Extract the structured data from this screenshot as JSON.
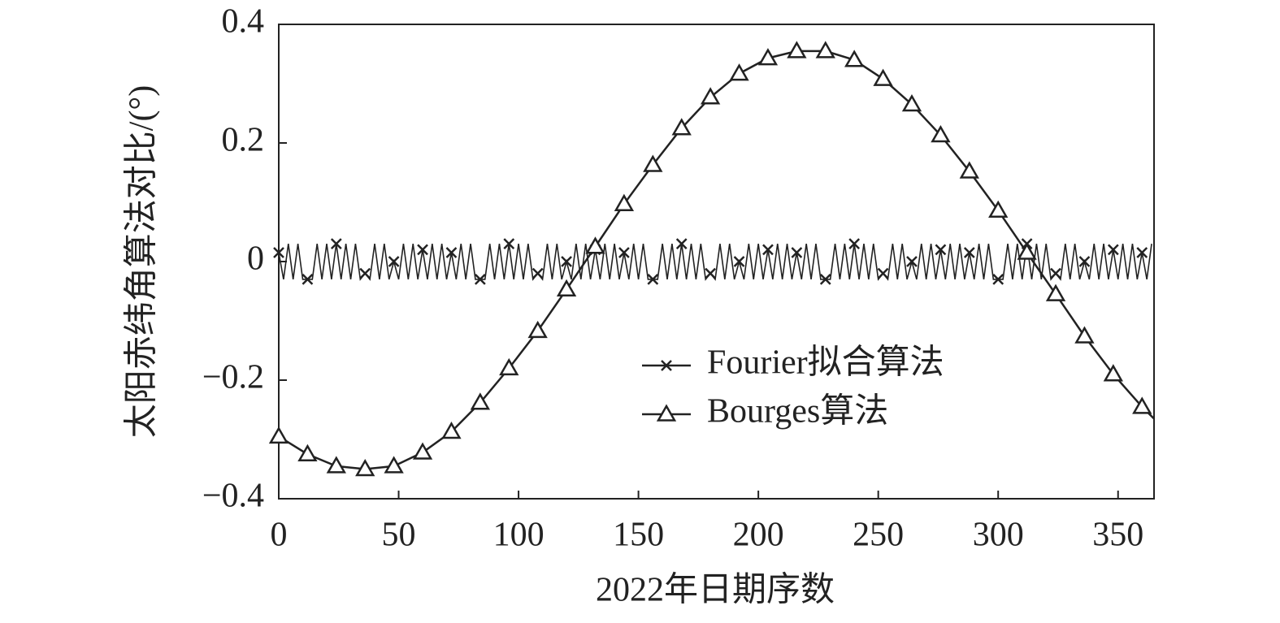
{
  "chart_data": {
    "type": "line",
    "xlabel": "2022年日期序数",
    "ylabel": "太阳赤纬角算法对比/(°)",
    "xlim": [
      0,
      365
    ],
    "ylim": [
      -0.4,
      0.4
    ],
    "xticks": [
      0,
      50,
      100,
      150,
      200,
      250,
      300,
      350
    ],
    "yticks": [
      {
        "value": -0.4,
        "label": "−0.4"
      },
      {
        "value": -0.2,
        "label": "−0.2"
      },
      0,
      0.2,
      0.4
    ],
    "legend": "lower right",
    "series": [
      {
        "name": "Fourier拟合算法",
        "color": "#222222",
        "marker": "x",
        "x": [
          0,
          2,
          4,
          6,
          8,
          10,
          12,
          14,
          16,
          18,
          20,
          22,
          24,
          26,
          28,
          30,
          32,
          34,
          36,
          38,
          40,
          42,
          44,
          46,
          48,
          50,
          52,
          54,
          56,
          58,
          60,
          62,
          64,
          66,
          68,
          70,
          72,
          74,
          76,
          78,
          80,
          82,
          84,
          86,
          88,
          90,
          92,
          94,
          96,
          98,
          100,
          102,
          104,
          106,
          108,
          110,
          112,
          114,
          116,
          118,
          120,
          122,
          124,
          126,
          128,
          130,
          132,
          134,
          136,
          138,
          140,
          142,
          144,
          146,
          148,
          150,
          152,
          154,
          156,
          158,
          160,
          162,
          164,
          166,
          168,
          170,
          172,
          174,
          176,
          178,
          180,
          182,
          184,
          186,
          188,
          190,
          192,
          194,
          196,
          198,
          200,
          202,
          204,
          206,
          208,
          210,
          212,
          214,
          216,
          218,
          220,
          222,
          224,
          226,
          228,
          230,
          232,
          234,
          236,
          238,
          240,
          242,
          244,
          246,
          248,
          250,
          252,
          254,
          256,
          258,
          260,
          262,
          264,
          266,
          268,
          270,
          272,
          274,
          276,
          278,
          280,
          282,
          284,
          286,
          288,
          290,
          292,
          294,
          296,
          298,
          300,
          302,
          304,
          306,
          308,
          310,
          312,
          314,
          316,
          318,
          320,
          322,
          324,
          326,
          328,
          330,
          332,
          334,
          336,
          338,
          340,
          342,
          344,
          346,
          348,
          350,
          352,
          354,
          356,
          358,
          360,
          362,
          364
        ],
        "values": [
          0.015,
          -0.03,
          0.03,
          -0.03,
          0.03,
          -0.03,
          -0.03,
          -0.03,
          0.03,
          -0.03,
          0.03,
          -0.03,
          0.03,
          -0.03,
          0.03,
          -0.03,
          0.03,
          -0.03,
          -0.02,
          -0.03,
          0.03,
          -0.03,
          0.03,
          -0.03,
          0,
          -0.03,
          0.03,
          -0.03,
          0.03,
          -0.03,
          0.02,
          -0.03,
          0.03,
          -0.03,
          0.03,
          -0.03,
          0.015,
          -0.03,
          0.03,
          -0.03,
          0.03,
          -0.03,
          -0.03,
          -0.03,
          0.03,
          -0.03,
          0.03,
          -0.03,
          0.03,
          -0.03,
          0.03,
          -0.03,
          0.03,
          -0.03,
          -0.02,
          -0.03,
          0.03,
          -0.03,
          0.03,
          -0.03,
          0,
          -0.03,
          0.03,
          -0.03,
          0.03,
          -0.03,
          0.02,
          -0.03,
          0.03,
          -0.03,
          0.03,
          -0.03,
          0.015,
          -0.03,
          0.03,
          -0.03,
          0.03,
          -0.03,
          -0.03,
          -0.03,
          0.03,
          -0.03,
          0.03,
          -0.03,
          0.03,
          -0.03,
          0.03,
          -0.03,
          0.03,
          -0.03,
          -0.02,
          -0.03,
          0.03,
          -0.03,
          0.03,
          -0.03,
          0,
          -0.03,
          0.03,
          -0.03,
          0.03,
          -0.03,
          0.02,
          -0.03,
          0.03,
          -0.03,
          0.03,
          -0.03,
          0.015,
          -0.03,
          0.03,
          -0.03,
          0.03,
          -0.03,
          -0.03,
          -0.03,
          0.03,
          -0.03,
          0.03,
          -0.03,
          0.03,
          -0.03,
          0.03,
          -0.03,
          0.03,
          -0.03,
          -0.02,
          -0.03,
          0.03,
          -0.03,
          0.03,
          -0.03,
          0,
          -0.03,
          0.03,
          -0.03,
          0.03,
          -0.03,
          0.02,
          -0.03,
          0.03,
          -0.03,
          0.03,
          -0.03,
          0.015,
          -0.03,
          0.03,
          -0.03,
          0.03,
          -0.03,
          -0.03,
          -0.03,
          0.03,
          -0.03,
          0.03,
          -0.03,
          0.03,
          -0.03,
          0.03,
          -0.03,
          0.03,
          -0.03,
          -0.02,
          -0.03,
          0.03,
          -0.03,
          0.03,
          -0.03,
          0,
          -0.03,
          0.03,
          -0.03,
          0.03,
          -0.03,
          0.02,
          -0.03,
          0.03,
          -0.03,
          0.03,
          -0.03,
          0.015,
          -0.03,
          0.03
        ]
      },
      {
        "name": "Bourges算法",
        "color": "#222222",
        "marker": "triangle",
        "x": [
          0,
          12,
          24,
          36,
          48,
          60,
          72,
          84,
          96,
          108,
          120,
          132,
          144,
          156,
          168,
          180,
          192,
          204,
          216,
          228,
          240,
          252,
          264,
          276,
          288,
          300,
          312,
          324,
          336,
          348,
          360,
          365
        ],
        "values": [
          -0.295,
          -0.325,
          -0.345,
          -0.35,
          -0.345,
          -0.322,
          -0.287,
          -0.238,
          -0.18,
          -0.117,
          -0.047,
          0.025,
          0.097,
          0.163,
          0.225,
          0.277,
          0.317,
          0.343,
          0.355,
          0.355,
          0.34,
          0.308,
          0.265,
          0.213,
          0.152,
          0.086,
          0.015,
          -0.055,
          -0.126,
          -0.19,
          -0.245,
          -0.265
        ]
      }
    ]
  }
}
